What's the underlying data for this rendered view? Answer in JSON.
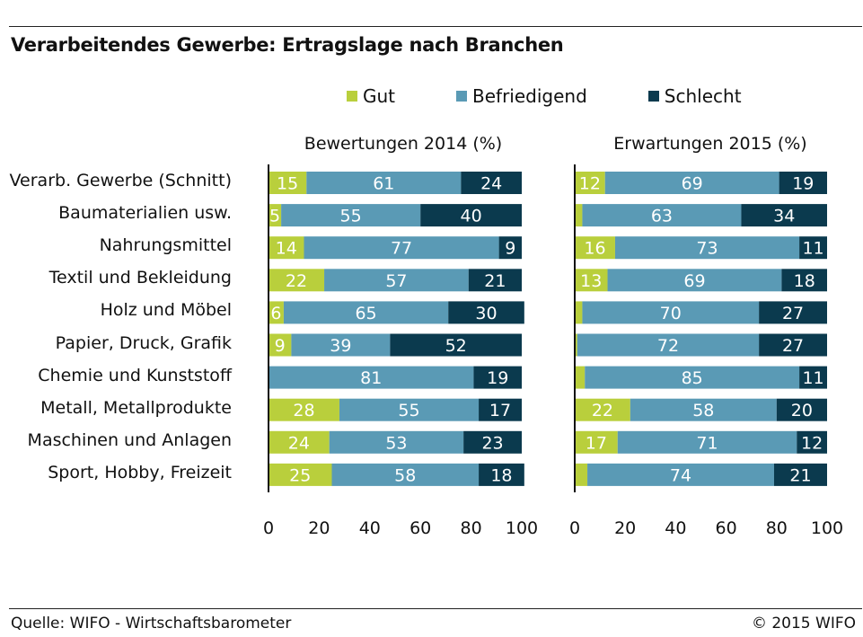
{
  "title": "Verarbeitendes Gewerbe: Ertragslage nach Branchen",
  "footer": {
    "source": "Quelle: WIFO - Wirtschaftsbarometer",
    "copyright": "© 2015 WIFO"
  },
  "colors": {
    "gut": "#b9cf3c",
    "befriedigend": "#5a9ab5",
    "schlecht": "#0b3a4e"
  },
  "chart_data": {
    "type": "bar",
    "orientation": "horizontal",
    "stacked": true,
    "legend": [
      "Gut",
      "Befriedigend",
      "Schlecht"
    ],
    "legend_position": "top",
    "xlim": [
      0,
      100
    ],
    "xticks": [
      "0",
      "20",
      "40",
      "60",
      "80",
      "100"
    ],
    "categories": [
      "Verarb. Gewerbe (Schnitt)",
      "Baumaterialien usw.",
      "Nahrungsmittel",
      "Textil und Bekleidung",
      "Holz und Möbel",
      "Papier, Druck, Grafik",
      "Chemie und Kunststoff",
      "Metall, Metallprodukte",
      "Maschinen und Anlagen",
      "Sport, Hobby, Freizeit"
    ],
    "panels": [
      {
        "title": "Bewertungen 2014 (%)",
        "series": [
          {
            "name": "Gut",
            "values": [
              15,
              5,
              14,
              22,
              6,
              9,
              0,
              28,
              24,
              25
            ]
          },
          {
            "name": "Befriedigend",
            "values": [
              61,
              55,
              77,
              57,
              65,
              39,
              81,
              55,
              53,
              58
            ]
          },
          {
            "name": "Schlecht",
            "values": [
              24,
              40,
              9,
              21,
              30,
              52,
              19,
              17,
              23,
              18
            ]
          }
        ]
      },
      {
        "title": "Erwartungen 2015 (%)",
        "series": [
          {
            "name": "Gut",
            "values": [
              12,
              3,
              16,
              13,
              3,
              1,
              4,
              22,
              17,
              5
            ]
          },
          {
            "name": "Befriedigend",
            "values": [
              69,
              63,
              73,
              69,
              70,
              72,
              85,
              58,
              71,
              74
            ]
          },
          {
            "name": "Schlecht",
            "values": [
              19,
              34,
              11,
              18,
              27,
              27,
              11,
              20,
              12,
              21
            ]
          }
        ]
      }
    ],
    "labels_shown": [
      [
        [
          15,
          61,
          24
        ],
        [
          5,
          55,
          40
        ],
        [
          14,
          77,
          9
        ],
        [
          22,
          57,
          21
        ],
        [
          6,
          65,
          30
        ],
        [
          9,
          39,
          52
        ],
        [
          null,
          81,
          19
        ],
        [
          28,
          55,
          17
        ],
        [
          24,
          53,
          23
        ],
        [
          25,
          58,
          18
        ]
      ],
      [
        [
          12,
          69,
          19
        ],
        [
          null,
          63,
          34
        ],
        [
          16,
          73,
          11
        ],
        [
          13,
          69,
          18
        ],
        [
          null,
          70,
          27
        ],
        [
          null,
          72,
          27
        ],
        [
          null,
          85,
          11
        ],
        [
          22,
          58,
          20
        ],
        [
          17,
          71,
          12
        ],
        [
          null,
          74,
          21
        ]
      ]
    ]
  }
}
